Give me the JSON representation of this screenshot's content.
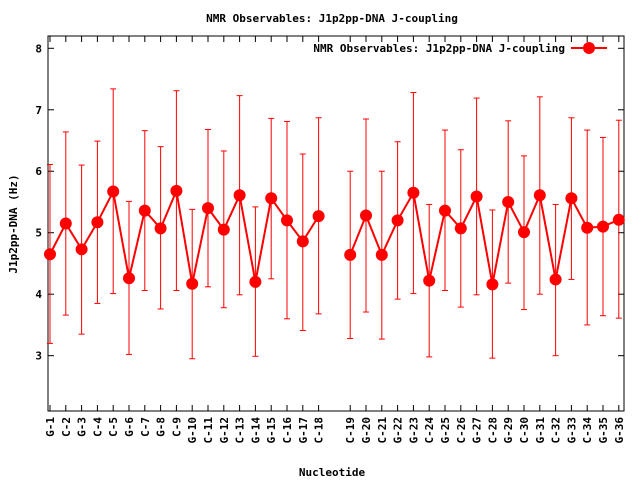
{
  "chart_data": {
    "type": "line",
    "title": "NMR Observables: J1p2pp-DNA J-coupling",
    "xlabel": "Nucleotide",
    "ylabel": "J1p2pp-DNA (Hz)",
    "ylim": [
      2.1,
      8.2
    ],
    "yticks": [
      "3",
      "4",
      "5",
      "6",
      "7",
      "8"
    ],
    "legend_position": "top-right",
    "series": [
      {
        "name": "NMR Observables: J1p2pp-DNA J-coupling",
        "color": "#ff0000",
        "marker": "circle",
        "segments": [
          {
            "categories": [
              "G-1",
              "C-2",
              "G-3",
              "C-4",
              "C-5",
              "G-6",
              "C-7",
              "G-8",
              "C-9",
              "G-10",
              "C-11",
              "G-12",
              "C-13",
              "G-14",
              "G-15",
              "C-16",
              "G-17",
              "C-18"
            ],
            "values": [
              4.65,
              5.15,
              4.73,
              5.17,
              5.67,
              4.26,
              5.36,
              5.07,
              5.68,
              4.17,
              5.4,
              5.05,
              5.61,
              4.2,
              5.56,
              5.2,
              4.86,
              5.27
            ],
            "err_low": [
              3.2,
              3.66,
              3.35,
              3.85,
              4.01,
              3.02,
              4.06,
              3.76,
              4.06,
              2.95,
              4.12,
              3.78,
              3.99,
              2.99,
              4.25,
              3.6,
              3.41,
              3.68
            ],
            "err_high": [
              6.11,
              6.64,
              6.1,
              6.49,
              7.34,
              5.51,
              6.66,
              6.4,
              7.31,
              5.38,
              6.68,
              6.33,
              7.23,
              5.42,
              6.86,
              6.81,
              6.28,
              6.87
            ]
          },
          {
            "categories": [
              "C-19",
              "G-20",
              "C-21",
              "G-22",
              "G-23",
              "C-24",
              "G-25",
              "C-26",
              "G-27",
              "C-28",
              "G-29",
              "C-30",
              "G-31",
              "C-32",
              "G-33",
              "C-34",
              "G-35",
              "G-36"
            ],
            "values": [
              4.64,
              5.28,
              4.64,
              5.2,
              5.65,
              4.22,
              5.36,
              5.07,
              5.59,
              4.16,
              5.5,
              5.01,
              5.61,
              4.24,
              5.56,
              5.08,
              5.1,
              5.21
            ],
            "err_low": [
              3.28,
              3.71,
              3.27,
              3.92,
              4.01,
              2.98,
              4.06,
              3.79,
              3.99,
              2.96,
              4.18,
              3.75,
              4.0,
              3.0,
              4.24,
              3.5,
              3.65,
              3.61
            ],
            "err_high": [
              6.0,
              6.85,
              6.0,
              6.48,
              7.28,
              5.46,
              6.67,
              6.35,
              7.19,
              5.37,
              6.82,
              6.25,
              7.21,
              5.46,
              6.87,
              6.67,
              6.55,
              6.83
            ]
          }
        ]
      }
    ]
  }
}
